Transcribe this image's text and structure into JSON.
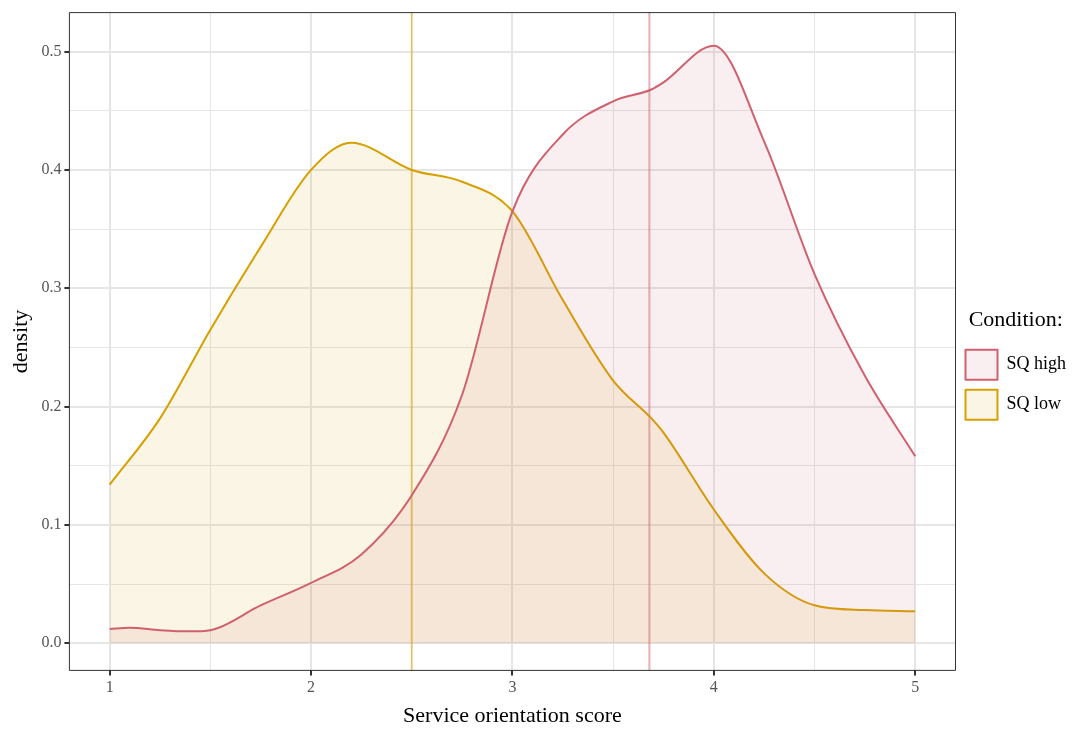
{
  "chart_data": {
    "type": "area",
    "xlabel": "Service orientation score",
    "ylabel": "density",
    "legend_title": "Condition:",
    "legend": "right",
    "grid": true,
    "xlim": [
      0.8,
      5.2
    ],
    "ylim": [
      -0.023,
      0.533
    ],
    "xticks": [
      {
        "value": 1,
        "label": "1"
      },
      {
        "value": 1.5,
        "label": null
      },
      {
        "value": 2,
        "label": "2"
      },
      {
        "value": 2.5,
        "label": null
      },
      {
        "value": 3,
        "label": "3"
      },
      {
        "value": 3.5,
        "label": null
      },
      {
        "value": 4,
        "label": "4"
      },
      {
        "value": 4.5,
        "label": null
      },
      {
        "value": 5,
        "label": "5"
      }
    ],
    "yticks": [
      {
        "value": 0,
        "label": "0.0"
      },
      {
        "value": 0.05,
        "label": null
      },
      {
        "value": 0.1,
        "label": "0.1"
      },
      {
        "value": 0.15,
        "label": null
      },
      {
        "value": 0.2,
        "label": "0.2"
      },
      {
        "value": 0.25,
        "label": null
      },
      {
        "value": 0.3,
        "label": "0.3"
      },
      {
        "value": 0.35,
        "label": null
      },
      {
        "value": 0.4,
        "label": "0.4"
      },
      {
        "value": 0.45,
        "label": null
      },
      {
        "value": 0.5,
        "label": "0.5"
      }
    ],
    "series": [
      {
        "name": "SQ high",
        "color": "#d0606e",
        "x": [
          1,
          1.1,
          1.25,
          1.4,
          1.5,
          1.75,
          2,
          2.25,
          2.5,
          2.75,
          3,
          3.25,
          3.5,
          3.69,
          3.75,
          4,
          4.25,
          4.5,
          4.75,
          5
        ],
        "values": [
          0.012,
          0.013,
          0.011,
          0.01,
          0.011,
          0.032,
          0.051,
          0.075,
          0.125,
          0.21,
          0.365,
          0.43,
          0.458,
          0.468,
          0.474,
          0.505,
          0.424,
          0.312,
          0.226,
          0.158
        ]
      },
      {
        "name": "SQ low",
        "color": "#d6a000",
        "x": [
          1,
          1.25,
          1.5,
          1.75,
          2,
          2.2,
          2.5,
          2.75,
          3,
          3.25,
          3.5,
          3.69,
          3.75,
          4,
          4.25,
          4.5,
          4.75,
          5
        ],
        "values": [
          0.134,
          0.19,
          0.265,
          0.335,
          0.4,
          0.423,
          0.4,
          0.39,
          0.365,
          0.29,
          0.222,
          0.19,
          0.178,
          0.113,
          0.059,
          0.032,
          0.028,
          0.027
        ]
      }
    ],
    "ref_lines": [
      {
        "axis": "x",
        "value": 3.68,
        "color": "#d0606e"
      },
      {
        "axis": "x",
        "value": 2.5,
        "color": "#d6a000"
      }
    ]
  }
}
